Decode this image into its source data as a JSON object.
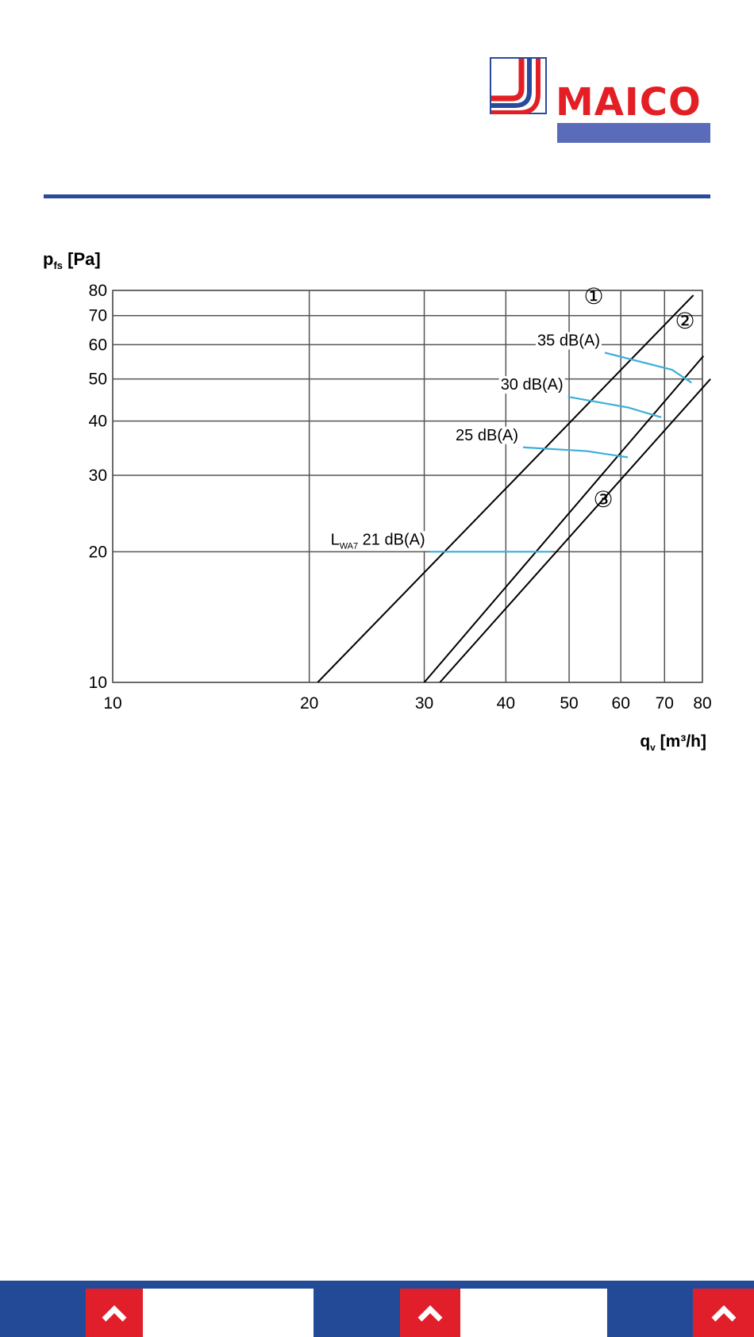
{
  "brand": {
    "name": "MAICO",
    "colors": {
      "red": "#e31e24",
      "blue": "#2a4a9b",
      "violet": "#5a6bb9"
    }
  },
  "chart_data": {
    "type": "line",
    "xscale": "log",
    "yscale": "log",
    "xlabel": {
      "main": "q",
      "sub": "v",
      "unit": " [m³/h]"
    },
    "ylabel": {
      "main": "p",
      "sub": "fs",
      "unit": " [Pa]"
    },
    "xlim": [
      10,
      80
    ],
    "ylim": [
      10,
      80
    ],
    "x_ticks": [
      10,
      20,
      30,
      40,
      50,
      60,
      70,
      80
    ],
    "y_ticks": [
      10,
      20,
      30,
      40,
      50,
      60,
      70,
      80
    ],
    "grid": true,
    "series": [
      {
        "name": "①",
        "color": "#000000",
        "points": [
          [
            20.6,
            10
          ],
          [
            77.5,
            78
          ]
        ]
      },
      {
        "name": "②",
        "color": "#000000",
        "points": [
          [
            30,
            10
          ],
          [
            80.3,
            56.5
          ]
        ]
      },
      {
        "name": "③",
        "color": "#000000",
        "points": [
          [
            31.7,
            10
          ],
          [
            82.3,
            50
          ]
        ]
      }
    ],
    "noise_curves": [
      {
        "label": "35 dB(A)",
        "color": "#3bb0d8",
        "points": [
          [
            56.7,
            57.5
          ],
          [
            71.9,
            52.5
          ],
          [
            77,
            49
          ]
        ]
      },
      {
        "label": "30 dB(A)",
        "color": "#3bb0d8",
        "points": [
          [
            49.8,
            45.5
          ],
          [
            61.5,
            43
          ],
          [
            69.2,
            40.8
          ]
        ]
      },
      {
        "label": "25 dB(A)",
        "color": "#3bb0d8",
        "points": [
          [
            42.5,
            34.8
          ],
          [
            53.3,
            34.1
          ],
          [
            61.5,
            33
          ]
        ]
      },
      {
        "label_main": "L",
        "label_sub": "WA7",
        "label_rest": " 21 dB(A)",
        "color": "#3bb0d8",
        "points": [
          [
            30.6,
            20
          ],
          [
            46.9,
            20
          ]
        ]
      }
    ]
  },
  "footer": {
    "nav_color": "#e11f2a",
    "buttons": [
      {
        "icon": "chevron-up-icon"
      },
      {
        "icon": "chevron-up-icon"
      },
      {
        "icon": "chevron-up-icon"
      }
    ]
  }
}
